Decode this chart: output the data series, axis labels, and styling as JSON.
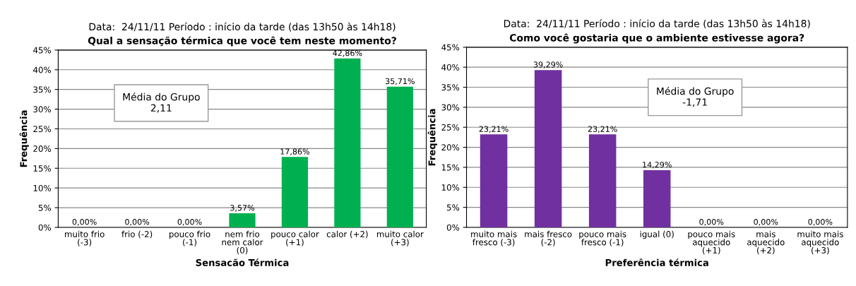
{
  "chart_data": [
    {
      "type": "bar",
      "subtitle": "Data:  24/11/11 Período : início da tarde (das 13h50 às 14h18)",
      "title": "Qual a sensação térmica que você tem neste momento?",
      "xlabel": "Sensacão Térmica",
      "ylabel": "Frequência",
      "categories": [
        "muito frio\n(-3)",
        "frio (-2)",
        "pouco frio\n(-1)",
        "nem frio\nnem calor\n(0)",
        "pouco calor\n(+1)",
        "calor (+2)",
        "muito calor\n(+3)"
      ],
      "values": [
        0,
        0,
        0,
        3.57,
        17.86,
        42.86,
        35.71
      ],
      "color": "#00b050",
      "value_labels": [
        "0,00%",
        "0,00%",
        "0,00%",
        "3,57%",
        "17,86%",
        "42,86%",
        "35,71%"
      ],
      "ylim": [
        0,
        45
      ],
      "yticks": [
        {
          "value": 0,
          "label": "0%"
        },
        {
          "value": 5,
          "label": "5%"
        },
        {
          "value": 10,
          "label": "10%"
        },
        {
          "value": 15,
          "label": "15%"
        },
        {
          "value": 20,
          "label": "20%"
        },
        {
          "value": 25,
          "label": "25%"
        },
        {
          "value": 30,
          "label": "30%"
        },
        {
          "value": 35,
          "label": "35%"
        },
        {
          "value": 40,
          "label": "40%"
        },
        {
          "value": 45,
          "label": "45%"
        }
      ],
      "grid": "y",
      "annotations": [
        "Média do Grupo\n2,11"
      ]
    },
    {
      "type": "bar",
      "subtitle": "Data:  24/11/11 Período : início da tarde (das 13h50 às 14h18)",
      "title": "Como você gostaria que o ambiente estivesse agora?",
      "xlabel": "Preferência térmica",
      "ylabel": "Frequência",
      "categories": [
        "muito mais\nfresco (-3)",
        "mais fresco\n(-2)",
        "pouco mais\nfresco (-1)",
        "igual (0)",
        "pouco mais\naquecido\n(+1)",
        "mais\naquecido\n(+2)",
        "muito mais\naquecido\n(+3)"
      ],
      "values": [
        23.21,
        39.29,
        23.21,
        14.29,
        0,
        0,
        0
      ],
      "color": "#7030a0",
      "value_labels": [
        "23,21%",
        "39,29%",
        "23,21%",
        "14,29%",
        "0,00%",
        "0,00%",
        "0,00%"
      ],
      "ylim": [
        0,
        45
      ],
      "yticks": [
        {
          "value": 0,
          "label": "0%"
        },
        {
          "value": 5,
          "label": "5%"
        },
        {
          "value": 10,
          "label": "10%"
        },
        {
          "value": 15,
          "label": "15%"
        },
        {
          "value": 20,
          "label": "20%"
        },
        {
          "value": 25,
          "label": "25%"
        },
        {
          "value": 30,
          "label": "30%"
        },
        {
          "value": 35,
          "label": "35%"
        },
        {
          "value": 40,
          "label": "40%"
        },
        {
          "value": 45,
          "label": "45%"
        }
      ],
      "grid": "y",
      "annotations": [
        "Média do Grupo\n-1,71"
      ]
    }
  ]
}
